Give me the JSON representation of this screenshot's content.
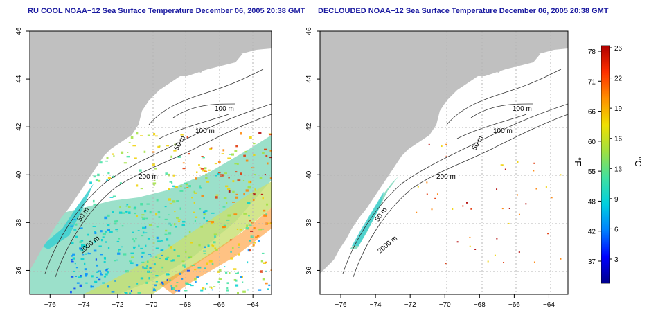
{
  "panels": [
    {
      "title": "RU COOL NOAA−12 Sea Surface Temperature December 06, 2005 20:38 GMT",
      "contours": [
        "100 m",
        "100 m",
        "50 m",
        "200 m",
        "50 m",
        "2000 m"
      ]
    },
    {
      "title": "DECLOUDED NOAA−12 Sea Surface Temperature December 06, 2005 20:38 GMT",
      "contours": [
        "100 m",
        "100 m",
        "50 m",
        "200 m",
        "50 m",
        "2000 m"
      ]
    }
  ],
  "axes": {
    "lon_ticks": [
      "−76",
      "−74",
      "−72",
      "−70",
      "−68",
      "−66",
      "−64"
    ],
    "lat_ticks": [
      "36",
      "38",
      "40",
      "42",
      "44",
      "46"
    ],
    "lon_range": [
      -77.2,
      -62.9
    ],
    "lat_range": [
      35,
      46
    ]
  },
  "colorbar": {
    "f_ticks": [
      "78",
      "71",
      "66",
      "60",
      "55",
      "48",
      "42",
      "37"
    ],
    "c_ticks": [
      "26",
      "22",
      "19",
      "16",
      "13",
      "9",
      "6",
      "3"
    ],
    "f_label": "°F",
    "c_label": "°C",
    "colors": [
      "#00008b",
      "#0000ff",
      "#0080ff",
      "#00d0e0",
      "#40e0a0",
      "#a0e040",
      "#f0e000",
      "#ff9000",
      "#ff3000",
      "#b00000"
    ]
  },
  "colors": {
    "land": "#c0c0c0",
    "title": "#1a1aa0",
    "grid": "#b4b4b4"
  }
}
